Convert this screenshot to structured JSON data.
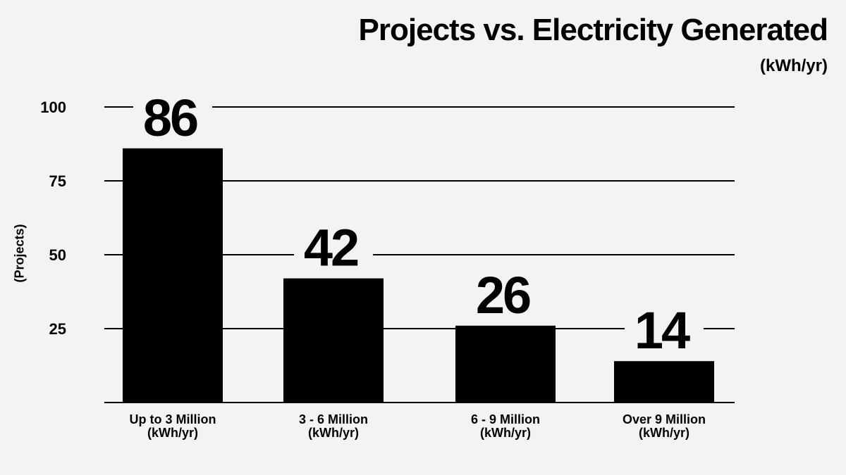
{
  "chart_data": {
    "type": "bar",
    "title": "Projects vs. Electricity Generated",
    "subtitle": "(kWh/yr)",
    "xlabel": "",
    "ylabel": "(Projects)",
    "categories": [
      [
        "Up to 3 Million",
        "(kWh/yr)"
      ],
      [
        "3 - 6 Million",
        "(kWh/yr)"
      ],
      [
        "6 - 9 Million",
        "(kWh/yr)"
      ],
      [
        "Over 9 Million",
        "(kWh/yr)"
      ]
    ],
    "values": [
      86,
      42,
      26,
      14
    ],
    "yticks": [
      25,
      50,
      75,
      100
    ],
    "ylim": [
      0,
      100
    ],
    "grid": true,
    "colors": {
      "bar": "#000000",
      "grid": "#000000",
      "background": "#f3f3f3"
    }
  }
}
